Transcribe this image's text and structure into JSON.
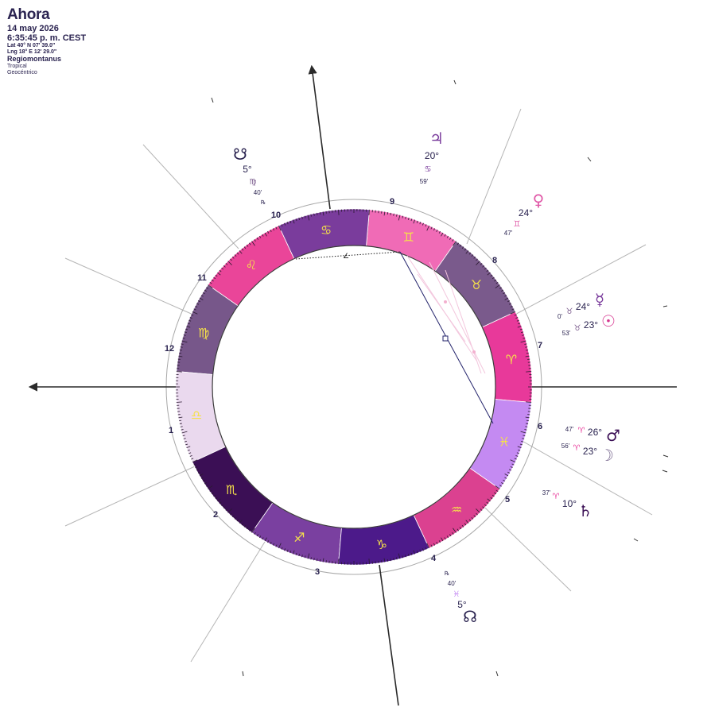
{
  "header": {
    "title": "Ahora",
    "date": "14 may 2026",
    "time": "6:35:45 p. m. CEST",
    "lat": "Lat 40° N 07' 39.0\"",
    "lng": "Lng 18° E 12' 29.0\"",
    "house_system": "Regiomontanus",
    "zodiac": "Tropical",
    "perspective": "Geocéntrico"
  },
  "zodiac_wheel": {
    "signs": [
      {
        "name": "aries",
        "glyph": "♈",
        "color": "#e8399a"
      },
      {
        "name": "taurus",
        "glyph": "♉",
        "color": "#7a5a8c"
      },
      {
        "name": "gemini",
        "glyph": "♊",
        "color": "#f06bb6"
      },
      {
        "name": "cancer",
        "glyph": "♋",
        "color": "#7a3c9c"
      },
      {
        "name": "leo",
        "glyph": "♌",
        "color": "#ea4599"
      },
      {
        "name": "virgo",
        "glyph": "♍",
        "color": "#77578a"
      },
      {
        "name": "libra",
        "glyph": "♎",
        "color": "#ead9ee"
      },
      {
        "name": "scorpio",
        "glyph": "♏",
        "color": "#3b0f55"
      },
      {
        "name": "sagittarius",
        "glyph": "♐",
        "color": "#7a40a0"
      },
      {
        "name": "capricorn",
        "glyph": "♑",
        "color": "#4c1a8a"
      },
      {
        "name": "aquarius",
        "glyph": "♒",
        "color": "#db4190"
      },
      {
        "name": "pisces",
        "glyph": "♓",
        "color": "#c48af2"
      }
    ],
    "glyph_color": "#f5e14a",
    "houses": [
      "1",
      "2",
      "3",
      "4",
      "5",
      "6",
      "7",
      "8",
      "9",
      "10",
      "11",
      "12"
    ]
  },
  "planets": [
    {
      "name": "jupiter",
      "glyph": "♃",
      "deg": "20°",
      "sign_glyph": "♋",
      "min": "59'",
      "color": "#7a3c9c"
    },
    {
      "name": "venus",
      "glyph": "♀",
      "deg": "24°",
      "sign_glyph": "♊",
      "min": "47'",
      "color": "#e05aa8"
    },
    {
      "name": "mercury",
      "glyph": "☿",
      "deg": "24°",
      "sign_glyph": "♉",
      "min": "0'",
      "color": "#7a3c9c"
    },
    {
      "name": "sun",
      "glyph": "☉",
      "deg": "23°",
      "sign_glyph": "♉",
      "min": "53'",
      "color": "#d6348f"
    },
    {
      "name": "mars",
      "glyph": "♂",
      "deg": "26°",
      "sign_glyph": "♈",
      "min": "47'",
      "color": "#3b0f55"
    },
    {
      "name": "moon",
      "glyph": "☽",
      "deg": "23°",
      "sign_glyph": "♈",
      "min": "56'",
      "color": "#7a6a90"
    },
    {
      "name": "saturn",
      "glyph": "♄",
      "deg": "10°",
      "sign_glyph": "♈",
      "min": "37'",
      "color": "#3b0f55"
    },
    {
      "name": "south-node",
      "glyph": "☋",
      "deg": "5°",
      "sign_glyph": "♍",
      "min": "40'",
      "retro": "℞",
      "color": "#2a2350"
    },
    {
      "name": "north-node",
      "glyph": "☊",
      "deg": "5°",
      "sign_glyph": "♓",
      "min": "40'",
      "retro": "℞",
      "color": "#2a2350"
    }
  ]
}
